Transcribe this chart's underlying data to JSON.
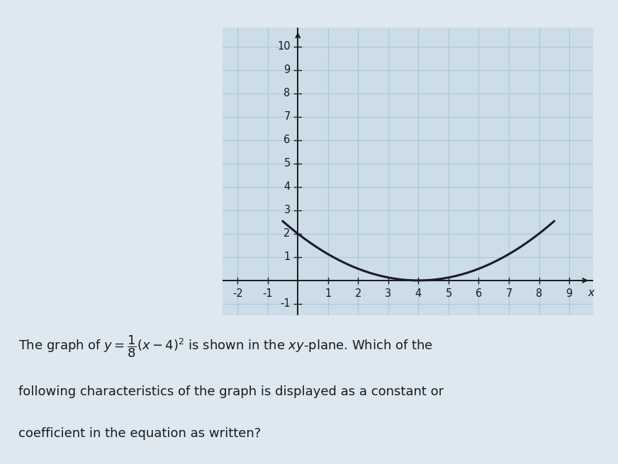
{
  "xlim": [
    -2.5,
    9.8
  ],
  "ylim": [
    -1.5,
    10.8
  ],
  "curve_color": "#1a1a2e",
  "grid_color": "#aac5e0",
  "axis_color": "#1a1a1a",
  "bg_color": "#dde8f0",
  "grid_bg_color": "#ccdde8",
  "curve_x_start": -0.5,
  "curve_x_end": 8.5,
  "vertex_x": 4,
  "coefficient": 0.125,
  "text_color": "#1a1a1a",
  "font_size_tick": 10.5,
  "curve_linewidth": 2.2,
  "grid_x_start": -2,
  "grid_x_end": 9,
  "grid_y_start": -1,
  "grid_y_end": 10
}
